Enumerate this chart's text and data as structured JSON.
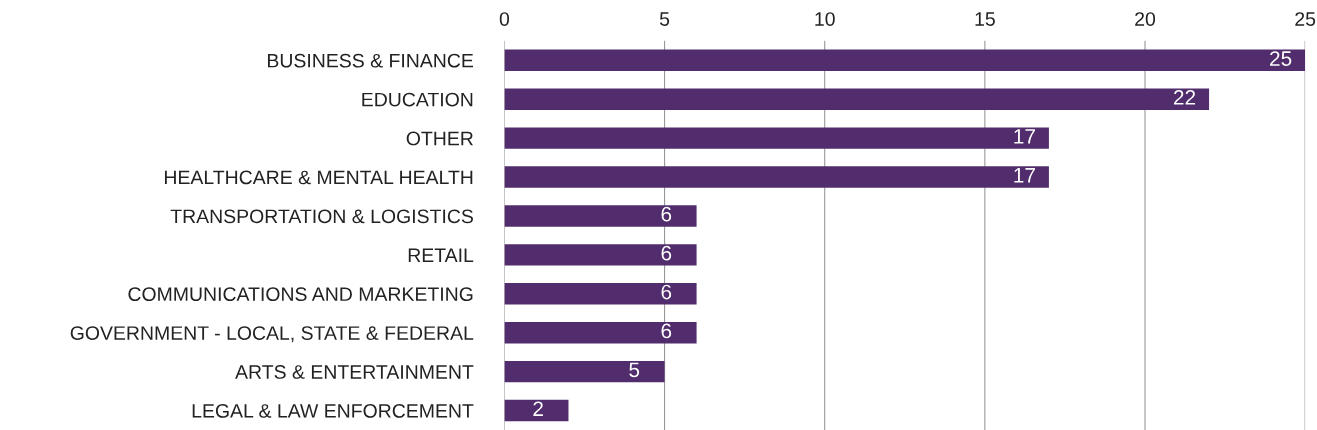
{
  "chart_data": {
    "type": "bar",
    "orientation": "horizontal",
    "categories": [
      "BUSINESS & FINANCE",
      "EDUCATION",
      "OTHER",
      "HEALTHCARE & MENTAL HEALTH",
      "TRANSPORTATION & LOGISTICS",
      "RETAIL",
      "COMMUNICATIONS AND MARKETING",
      "GOVERNMENT - LOCAL, STATE & FEDERAL",
      "ARTS & ENTERTAINMENT",
      "LEGAL & LAW ENFORCEMENT"
    ],
    "values": [
      25,
      22,
      17,
      17,
      6,
      6,
      6,
      6,
      5,
      2
    ],
    "color": "#512d6d",
    "xlim": [
      0,
      25
    ],
    "xticks": [
      0,
      5,
      10,
      15,
      20,
      25
    ],
    "grid": "x",
    "data_labels": true
  }
}
